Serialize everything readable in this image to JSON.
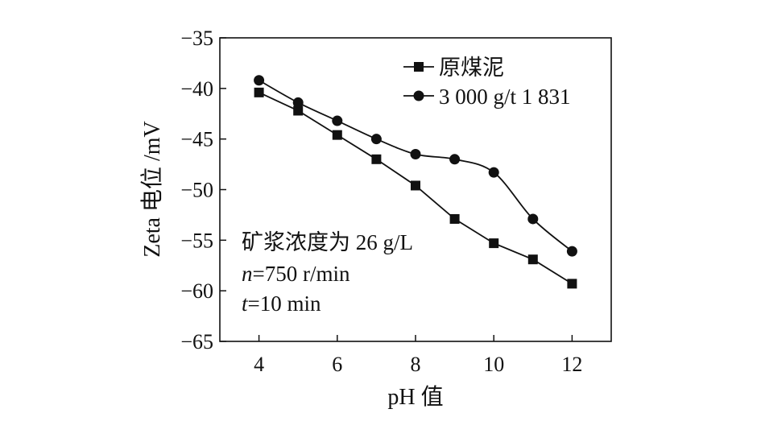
{
  "chart_data": {
    "type": "line",
    "xlabel": "pH 值",
    "ylabel": "Zeta 电位 /mV",
    "xlim": [
      3,
      13
    ],
    "ylim": [
      -65,
      -35
    ],
    "xticks": [
      4,
      6,
      8,
      10,
      12
    ],
    "xtick_labels": [
      "4",
      "6",
      "8",
      "10",
      "12"
    ],
    "yticks": [
      -35,
      -40,
      -45,
      -50,
      -55,
      -60,
      -65
    ],
    "ytick_labels": [
      "−35",
      "−40",
      "−45",
      "−50",
      "−55",
      "−60",
      "−65"
    ],
    "grid": false,
    "legend_position": "top-right",
    "series": [
      {
        "name": "原煤泥",
        "marker": "square",
        "x": [
          4,
          5,
          6,
          7,
          8,
          9,
          10,
          11,
          12
        ],
        "y": [
          -40.4,
          -42.2,
          -44.6,
          -47.0,
          -49.6,
          -52.9,
          -55.3,
          -56.9,
          -59.3
        ]
      },
      {
        "name": "3 000 g/t 1 831",
        "marker": "circle",
        "x": [
          4,
          5,
          6,
          7,
          8,
          9,
          10,
          11,
          12
        ],
        "y": [
          -39.2,
          -41.4,
          -43.2,
          -45.0,
          -46.5,
          -47.0,
          -48.3,
          -52.9,
          -56.1
        ]
      }
    ],
    "annotations": [
      {
        "text": "矿浆浓度为 26 g/L"
      },
      {
        "italic": "n",
        "text": "=750 r/min"
      },
      {
        "italic": "t",
        "text": "=10 min"
      }
    ]
  }
}
